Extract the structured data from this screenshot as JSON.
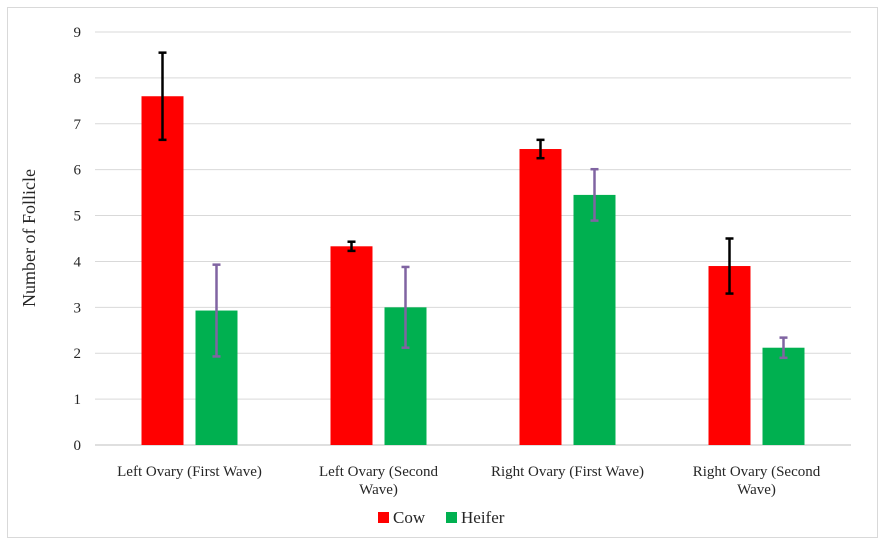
{
  "chart_data": {
    "type": "bar",
    "title": "",
    "xlabel": "",
    "ylabel": "Number of Follicle",
    "ylim": [
      0,
      9
    ],
    "yticks": [
      0,
      1,
      2,
      3,
      4,
      5,
      6,
      7,
      8,
      9
    ],
    "grid": true,
    "legend_position": "bottom",
    "categories": [
      [
        "Left Ovary (First Wave)"
      ],
      [
        "Left Ovary (Second",
        "Wave)"
      ],
      [
        "Right Ovary (First Wave)"
      ],
      [
        "Right Ovary (Second",
        "Wave)"
      ]
    ],
    "series": [
      {
        "name": "Cow",
        "color": "#ff0000",
        "error_color": "#000000",
        "values": [
          7.6,
          4.33,
          6.45,
          3.9
        ],
        "error": [
          0.95,
          0.1,
          0.2,
          0.6
        ]
      },
      {
        "name": "Heifer",
        "color": "#00b050",
        "error_color": "#8064a2",
        "values": [
          2.93,
          3.0,
          5.45,
          2.12
        ],
        "error": [
          1.0,
          0.88,
          0.56,
          0.22
        ]
      }
    ]
  }
}
